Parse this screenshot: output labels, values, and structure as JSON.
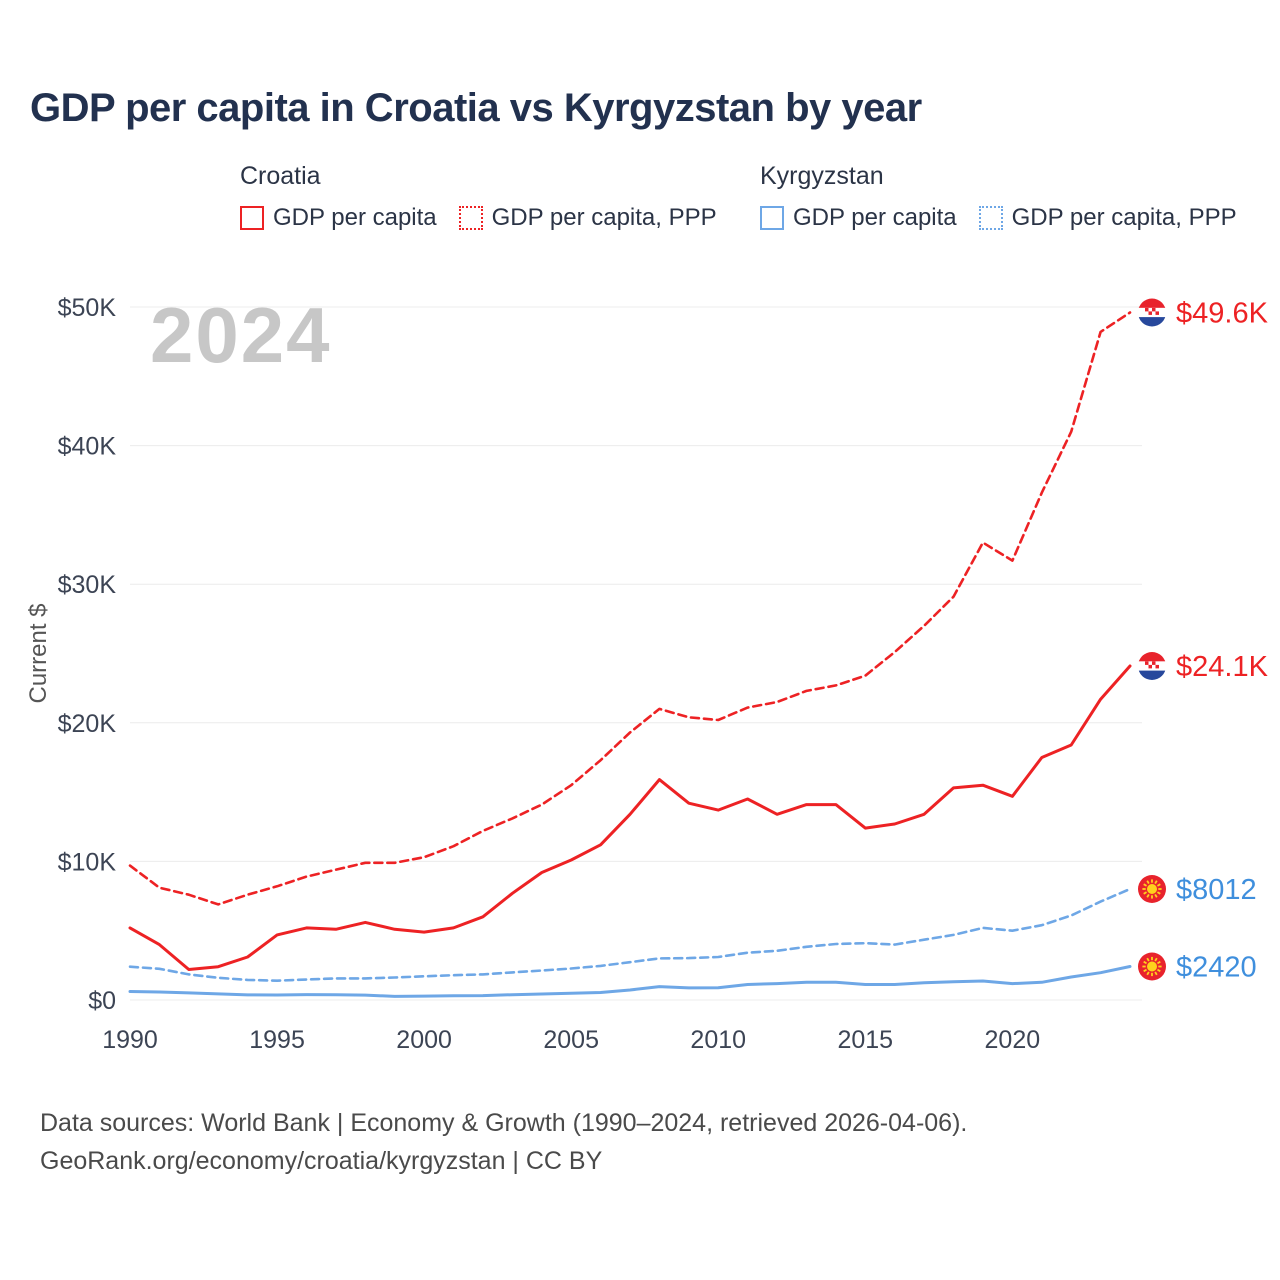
{
  "title": "GDP per capita in Croatia vs Kyrgyzstan by year",
  "watermark": "2024",
  "colors": {
    "croatia_line": "#ed2224",
    "kyrgyzstan_line": "#6ea7e6",
    "croatia_label": "#ed2224",
    "kyrgyzstan_label": "#3f8fdd",
    "title_text": "#22314f",
    "axis_text": "#3c4454",
    "grid_line": "#ececec",
    "watermark_text": "#c7c7c7",
    "footer_text": "#4a4a4a"
  },
  "legend": {
    "groups": [
      {
        "country": "Croatia",
        "items": [
          {
            "label": "GDP per capita",
            "line_style": "solid",
            "color": "#ed2224"
          },
          {
            "label": "GDP per capita, PPP",
            "line_style": "dotted",
            "color": "#ed2224"
          }
        ]
      },
      {
        "country": "Kyrgyzstan",
        "items": [
          {
            "label": "GDP per capita",
            "line_style": "solid",
            "color": "#6ea7e6"
          },
          {
            "label": "GDP per capita, PPP",
            "line_style": "dotted",
            "color": "#6ea7e6"
          }
        ]
      }
    ]
  },
  "y_axis": {
    "label": "Current $",
    "ticks": [
      {
        "label": "$0",
        "value": 0
      },
      {
        "label": "$10K",
        "value": 10000
      },
      {
        "label": "$20K",
        "value": 20000
      },
      {
        "label": "$30K",
        "value": 30000
      },
      {
        "label": "$40K",
        "value": 40000
      },
      {
        "label": "$50K",
        "value": 50000
      }
    ]
  },
  "x_axis": {
    "ticks": [
      {
        "label": "1990",
        "value": 1990
      },
      {
        "label": "1995",
        "value": 1995
      },
      {
        "label": "2000",
        "value": 2000
      },
      {
        "label": "2005",
        "value": 2005
      },
      {
        "label": "2010",
        "value": 2010
      },
      {
        "label": "2015",
        "value": 2015
      },
      {
        "label": "2020",
        "value": 2020
      }
    ]
  },
  "end_labels": [
    {
      "text": "$49.6K",
      "value": 49600,
      "flag": "croatia",
      "color": "#ed2224"
    },
    {
      "text": "$24.1K",
      "value": 24100,
      "flag": "croatia",
      "color": "#ed2224"
    },
    {
      "text": "$8012",
      "value": 8012,
      "flag": "kyrgyzstan",
      "color": "#3f8fdd"
    },
    {
      "text": "$2420",
      "value": 2420,
      "flag": "kyrgyzstan",
      "color": "#3f8fdd"
    }
  ],
  "footer": {
    "line1": "Data sources: World Bank | Economy & Growth (1990–2024, retrieved 2026-04-06).",
    "line2": "GeoRank.org/economy/croatia/kyrgyzstan | CC BY"
  },
  "chart_data": {
    "type": "line",
    "title": "GDP per capita in Croatia vs Kyrgyzstan by year",
    "xlabel": "",
    "ylabel": "Current $",
    "ylim": [
      0,
      50000
    ],
    "xlim": [
      1990,
      2024
    ],
    "grid": "horizontal",
    "legend_position": "top",
    "x": [
      1990,
      1991,
      1992,
      1993,
      1994,
      1995,
      1996,
      1997,
      1998,
      1999,
      2000,
      2001,
      2002,
      2003,
      2004,
      2005,
      2006,
      2007,
      2008,
      2009,
      2010,
      2011,
      2012,
      2013,
      2014,
      2015,
      2016,
      2017,
      2018,
      2019,
      2020,
      2021,
      2022,
      2023,
      2024
    ],
    "series": [
      {
        "name": "Croatia GDP per capita, PPP",
        "country": "Croatia",
        "color": "#ed2224",
        "dashed": true,
        "end_label": "$49.6K",
        "values": [
          9700,
          8100,
          7600,
          6900,
          7600,
          8200,
          8900,
          9400,
          9900,
          9900,
          10300,
          11100,
          12200,
          13100,
          14100,
          15500,
          17300,
          19300,
          21000,
          20400,
          20200,
          21100,
          21500,
          22300,
          22700,
          23400,
          25100,
          27000,
          29100,
          33000,
          31700,
          36600,
          41000,
          48200,
          49600
        ]
      },
      {
        "name": "Croatia GDP per capita",
        "country": "Croatia",
        "color": "#ed2224",
        "dashed": false,
        "end_label": "$24.1K",
        "values": [
          5200,
          4000,
          2200,
          2400,
          3100,
          4700,
          5200,
          5100,
          5600,
          5100,
          4900,
          5200,
          6000,
          7700,
          9200,
          10100,
          11200,
          13400,
          15900,
          14200,
          13700,
          14500,
          13400,
          14100,
          14100,
          12400,
          12700,
          13400,
          15300,
          15500,
          14700,
          17500,
          18400,
          21700,
          24100
        ]
      },
      {
        "name": "Kyrgyzstan GDP per capita, PPP",
        "country": "Kyrgyzstan",
        "color": "#6ea7e6",
        "dashed": true,
        "end_label": "$8012",
        "values": [
          2400,
          2250,
          1850,
          1600,
          1450,
          1390,
          1480,
          1560,
          1560,
          1620,
          1710,
          1790,
          1850,
          1990,
          2130,
          2270,
          2460,
          2730,
          3000,
          3020,
          3100,
          3410,
          3550,
          3840,
          4040,
          4100,
          4000,
          4350,
          4700,
          5200,
          5000,
          5400,
          6100,
          7100,
          8012
        ]
      },
      {
        "name": "Kyrgyzstan GDP per capita",
        "country": "Kyrgyzstan",
        "color": "#6ea7e6",
        "dashed": false,
        "end_label": "$2420",
        "values": [
          610,
          580,
          510,
          440,
          370,
          360,
          390,
          380,
          350,
          260,
          280,
          310,
          320,
          380,
          430,
          480,
          540,
          720,
          970,
          870,
          880,
          1120,
          1180,
          1280,
          1280,
          1120,
          1120,
          1240,
          1310,
          1370,
          1180,
          1280,
          1660,
          1970,
          2420
        ]
      }
    ]
  }
}
